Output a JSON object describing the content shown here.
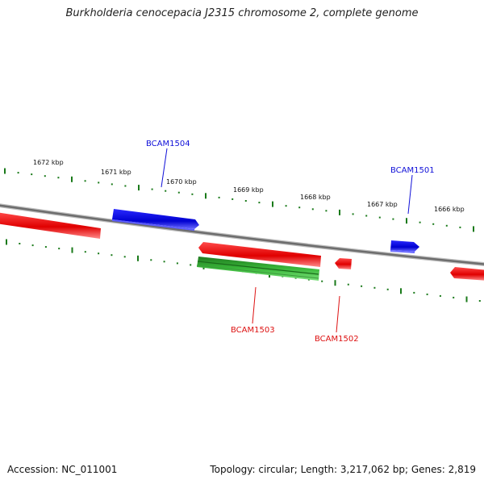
{
  "title": "Burkholderia cenocepacia J2315 chromosome 2, complete genome",
  "footer": {
    "accession": "Accession: NC_011001",
    "summary": "Topology: circular; Length: 3,217,062 bp; Genes: 2,819"
  },
  "ruler_labels": [
    "1672 kbp",
    "1671 kbp",
    "1670 kbp",
    "1669 kbp",
    "1668 kbp",
    "1667 kbp",
    "1666 kbp"
  ],
  "genes": [
    {
      "label": "BCAM1504",
      "strand": "forward",
      "color": "#1010d8"
    },
    {
      "label": "BCAM1501",
      "strand": "forward",
      "color": "#1010d8"
    },
    {
      "label": "BCAM1503",
      "strand": "reverse",
      "color": "#2ca02c"
    },
    {
      "label": "BCAM1502",
      "strand": "reverse",
      "color": "#dd1111"
    }
  ],
  "colors": {
    "forward_gene": "#1010d8",
    "reverse_gene_red": "#ee1111",
    "reverse_gene_green": "#2ca02c",
    "backbone": "#7a7a7a",
    "ticks": "#1a7a1a"
  }
}
